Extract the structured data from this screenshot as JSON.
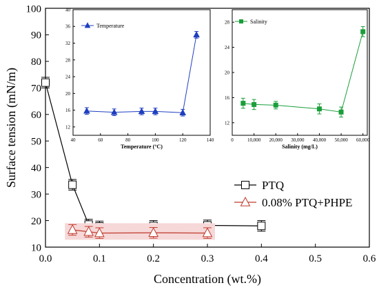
{
  "chart_data": [
    {
      "id": "main",
      "type": "line",
      "xlabel": "Concentration (wt.%)",
      "ylabel": "Surface tension (mN/m)",
      "xlim": [
        0.0,
        0.6
      ],
      "ylim": [
        10,
        100
      ],
      "xticks": [
        0.0,
        0.1,
        0.2,
        0.3,
        0.4,
        0.5,
        0.6
      ],
      "xtick_labels": [
        "0.0",
        "0.1",
        "0.2",
        "0.3",
        "0.4",
        "0.5",
        "0.6"
      ],
      "yticks": [
        10,
        20,
        30,
        40,
        50,
        60,
        70,
        80,
        90,
        100
      ],
      "ytick_labels": [
        "10",
        "20",
        "30",
        "40",
        "50",
        "60",
        "70",
        "80",
        "90",
        "100"
      ],
      "legend_position": "right-middle",
      "series": [
        {
          "name": "PTQ",
          "marker": "square",
          "color": "#000000",
          "x": [
            0.0,
            0.05,
            0.08,
            0.1,
            0.2,
            0.3,
            0.4
          ],
          "y": [
            72.0,
            33.5,
            18.5,
            17.8,
            18.0,
            18.2,
            18.0
          ],
          "err": [
            2.0,
            2.0,
            2.0,
            2.0,
            2.0,
            2.0,
            2.0
          ]
        },
        {
          "name": "0.08% PTQ+PHPE",
          "marker": "triangle",
          "color": "#c0392b",
          "band_color": "#f6d8d8",
          "x": [
            0.05,
            0.08,
            0.1,
            0.2,
            0.3
          ],
          "y": [
            16.5,
            15.8,
            15.3,
            15.4,
            15.3
          ],
          "err": [
            2.0,
            2.0,
            2.0,
            2.0,
            2.0
          ]
        }
      ]
    },
    {
      "id": "inset-temperature",
      "type": "line",
      "xlabel": "Temperature (°C)",
      "ylabel": "",
      "xlim": [
        40,
        140
      ],
      "ylim": [
        10,
        40
      ],
      "xticks": [
        40,
        60,
        80,
        100,
        120,
        140
      ],
      "xtick_labels": [
        "40",
        "60",
        "80",
        "100",
        "120",
        "140"
      ],
      "yticks": [
        12,
        16,
        20,
        24,
        28,
        32,
        36,
        40
      ],
      "ytick_labels": [
        "12",
        "16",
        "20",
        "24",
        "28",
        "32",
        "36",
        "40"
      ],
      "legend_position": "top-left",
      "series": [
        {
          "name": "Temperature",
          "marker": "triangle",
          "color": "#1f3fbf",
          "x": [
            50,
            70,
            90,
            100,
            120,
            130
          ],
          "y": [
            15.8,
            15.5,
            15.7,
            15.7,
            15.4,
            34.0
          ],
          "err": [
            0.8,
            0.8,
            0.8,
            0.8,
            0.8,
            0.8
          ]
        }
      ]
    },
    {
      "id": "inset-salinity",
      "type": "line",
      "xlabel": "Salinity (mg/L)",
      "ylabel": "",
      "xlim": [
        0,
        62000
      ],
      "ylim": [
        10,
        30
      ],
      "xticks": [
        0,
        10000,
        20000,
        30000,
        40000,
        50000,
        60000
      ],
      "xtick_labels": [
        "0",
        "10,000",
        "20,000",
        "30,000",
        "40,000",
        "50,000",
        "60,000"
      ],
      "yticks": [
        12,
        16,
        20,
        24,
        28
      ],
      "ytick_labels": [
        "12",
        "16",
        "20",
        "24",
        "28"
      ],
      "legend_position": "top-left",
      "series": [
        {
          "name": "Salinity",
          "marker": "square",
          "color": "#1a9e3a",
          "x": [
            5000,
            10000,
            20000,
            40000,
            50000,
            60000
          ],
          "y": [
            15.1,
            14.9,
            14.8,
            14.2,
            13.7,
            26.5
          ],
          "err": [
            0.8,
            0.8,
            0.6,
            0.8,
            0.8,
            0.8
          ]
        }
      ]
    }
  ]
}
